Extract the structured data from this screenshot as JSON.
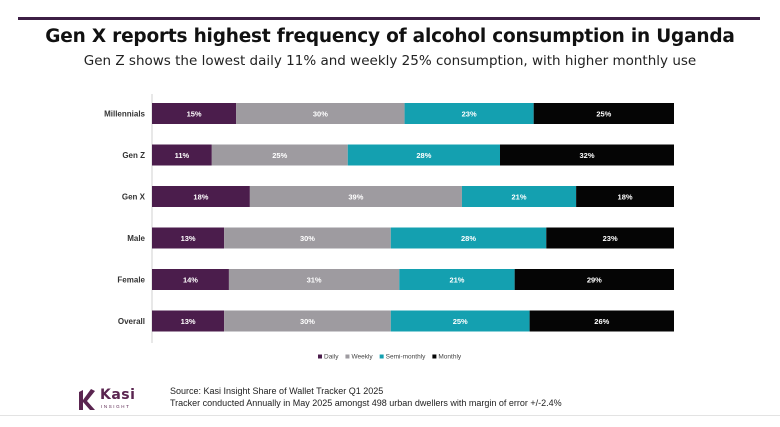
{
  "header": {
    "title": "Gen X reports highest frequency of alcohol consumption in Uganda",
    "subtitle": "Gen Z shows the lowest daily 11% and weekly 25% consumption, with higher monthly use"
  },
  "chart_data": {
    "type": "bar",
    "orientation": "horizontal",
    "stacked": true,
    "categories": [
      "Millennials",
      "Gen Z",
      "Gen X",
      "Male",
      "Female",
      "Overall"
    ],
    "series": [
      {
        "name": "Daily",
        "color": "#4b1d4c",
        "values": [
          15,
          11,
          18,
          13,
          14,
          13
        ]
      },
      {
        "name": "Weekly",
        "color": "#9e9ba0",
        "values": [
          30,
          25,
          39,
          30,
          31,
          30
        ]
      },
      {
        "name": "Semi-monthly",
        "color": "#14a0b0",
        "values": [
          23,
          28,
          21,
          28,
          21,
          25
        ]
      },
      {
        "name": "Monthly",
        "color": "#050505",
        "values": [
          25,
          32,
          18,
          23,
          29,
          26
        ]
      }
    ],
    "value_suffix": "%",
    "legend_position": "bottom",
    "grid": false
  },
  "footer": {
    "source": "Source: Kasi Insight Share of Wallet Tracker Q1 2025",
    "note": "Tracker conducted Annually in May 2025  amongst 498 urban dwellers with margin of error +/-2.4%",
    "logo_name": "Kasi",
    "logo_tagline": "INSIGHT"
  },
  "colors": {
    "accent": "#3d1f45",
    "brand": "#5a2550"
  }
}
